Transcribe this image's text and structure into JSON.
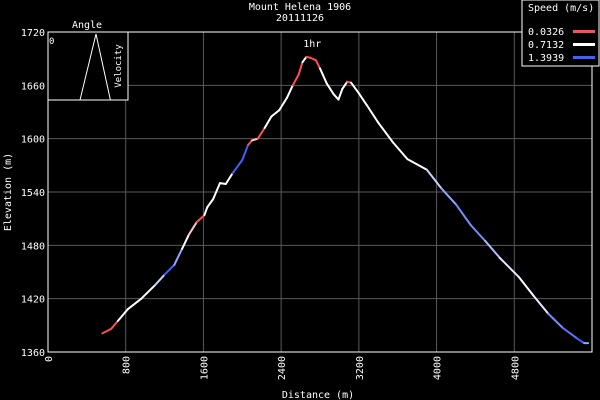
{
  "chart_data": {
    "type": "line",
    "title": "Mount Helena 1906",
    "subtitle": "20111126",
    "xlabel": "Distance (m)",
    "ylabel": "Elevation (m)",
    "xlim": [
      0,
      5600
    ],
    "ylim": [
      1360,
      1720
    ],
    "x_ticks": [
      "0",
      "800",
      "1600",
      "2400",
      "3200",
      "4000",
      "4800"
    ],
    "x_tick_values": [
      0,
      800,
      1600,
      2400,
      3200,
      4000,
      4800
    ],
    "y_ticks": [
      "1360",
      "1420",
      "1480",
      "1540",
      "1600",
      "1660",
      "1720"
    ],
    "y_tick_values": [
      1360,
      1420,
      1480,
      1540,
      1600,
      1660,
      1720
    ],
    "grid": true,
    "annotations": [
      {
        "text": "1hr",
        "x": 2720,
        "y": 1693
      }
    ],
    "legend": {
      "title": "Speed (m/s)",
      "placement": "top-right",
      "entries": [
        {
          "label": "0.0326",
          "color": "#ff5050"
        },
        {
          "label": "0.7132",
          "color": "#ffffff"
        },
        {
          "label": "1.3939",
          "color": "#4060ff"
        }
      ]
    },
    "inset": {
      "title": "Angle",
      "left_label": "0",
      "right_label": "Velocity",
      "points": [
        [
          0.05,
          0
        ],
        [
          0.4,
          0
        ],
        [
          0.6,
          1
        ],
        [
          0.78,
          0
        ],
        [
          0.95,
          0
        ]
      ]
    },
    "series": [
      {
        "x": [
          560,
          650,
          720,
          820,
          960,
          1100,
          1200,
          1300,
          1380,
          1450,
          1530,
          1610,
          1640,
          1700,
          1770,
          1830,
          1900,
          2000,
          2060,
          2100,
          2160,
          2230,
          2300,
          2380,
          2460,
          2520,
          2580,
          2620,
          2660,
          2700,
          2760,
          2800,
          2870,
          2940,
          2990,
          3030,
          3080,
          3120,
          3200,
          3280,
          3400,
          3550,
          3700,
          3900,
          4050,
          4200,
          4350,
          4500,
          4650,
          4850,
          5000,
          5150,
          5300,
          5450,
          5520,
          5560
        ],
        "y": [
          1381,
          1386,
          1395,
          1408,
          1420,
          1435,
          1447,
          1458,
          1476,
          1492,
          1506,
          1514,
          1523,
          1532,
          1550,
          1549,
          1561,
          1576,
          1593,
          1598,
          1600,
          1612,
          1625,
          1632,
          1646,
          1660,
          1672,
          1686,
          1692,
          1691,
          1688,
          1679,
          1662,
          1650,
          1644,
          1656,
          1664,
          1663,
          1651,
          1638,
          1618,
          1596,
          1577,
          1565,
          1544,
          1526,
          1503,
          1485,
          1466,
          1444,
          1423,
          1403,
          1387,
          1375,
          1370,
          1370
        ],
        "speed": [
          0.03,
          0.04,
          0.71,
          0.71,
          0.71,
          0.9,
          1.39,
          1.1,
          0.71,
          0.5,
          0.04,
          0.71,
          0.71,
          0.71,
          0.71,
          0.71,
          1.39,
          1.39,
          0.03,
          0.5,
          0.04,
          0.71,
          0.71,
          0.71,
          0.71,
          0.03,
          0.03,
          0.71,
          0.03,
          0.03,
          0.03,
          0.71,
          0.71,
          0.71,
          0.71,
          0.71,
          0.03,
          0.71,
          0.71,
          0.71,
          0.71,
          0.71,
          0.71,
          0.9,
          1.1,
          1.2,
          1.2,
          1.0,
          0.8,
          0.71,
          0.8,
          1.2,
          1.3,
          1.39,
          1.1,
          0.9
        ]
      }
    ]
  }
}
